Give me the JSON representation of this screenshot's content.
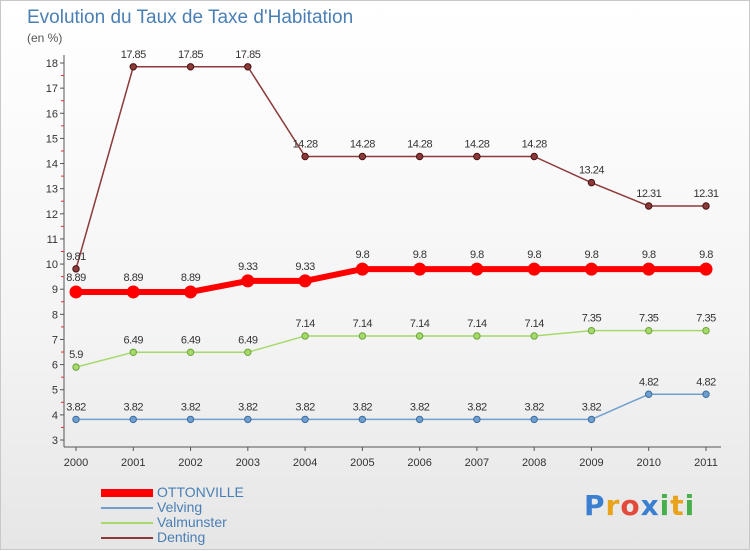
{
  "chart_data": {
    "type": "line",
    "title": "Evolution du Taux de Taxe d'Habitation",
    "ylabel": "(en %)",
    "x": [
      "2000",
      "2001",
      "2002",
      "2003",
      "2004",
      "2005",
      "2006",
      "2007",
      "2008",
      "2009",
      "2010",
      "2011"
    ],
    "ylim": [
      3,
      18
    ],
    "yticks": [
      3,
      4,
      5,
      6,
      7,
      8,
      9,
      10,
      11,
      12,
      13,
      14,
      15,
      16,
      17,
      18
    ],
    "grid": false,
    "series": [
      {
        "name": "OTTONVILLE",
        "color": "#ff0000",
        "width": 6,
        "values": [
          8.89,
          8.89,
          8.89,
          9.33,
          9.33,
          9.8,
          9.8,
          9.8,
          9.8,
          9.8,
          9.8,
          9.8
        ],
        "labels": [
          "8.89",
          "8.89",
          "8.89",
          "9.33",
          "9.33",
          "9.8",
          "9.8",
          "9.8",
          "9.8",
          "9.8",
          "9.8",
          "9.8"
        ]
      },
      {
        "name": "Velving",
        "color": "#6f9fcf",
        "width": 1.5,
        "values": [
          3.82,
          3.82,
          3.82,
          3.82,
          3.82,
          3.82,
          3.82,
          3.82,
          3.82,
          3.82,
          4.82,
          4.82
        ],
        "labels": [
          "3.82",
          "3.82",
          "3.82",
          "3.82",
          "3.82",
          "3.82",
          "3.82",
          "3.82",
          "3.82",
          "3.82",
          "4.82",
          "4.82"
        ]
      },
      {
        "name": "Valmunster",
        "color": "#a6d96a",
        "width": 1.5,
        "values": [
          5.9,
          6.49,
          6.49,
          6.49,
          7.14,
          7.14,
          7.14,
          7.14,
          7.14,
          7.35,
          7.35,
          7.35
        ],
        "labels": [
          "5.9",
          "6.49",
          "6.49",
          "6.49",
          "7.14",
          "7.14",
          "7.14",
          "7.14",
          "7.14",
          "7.35",
          "7.35",
          "7.35"
        ]
      },
      {
        "name": "Denting",
        "color": "#8b3a3a",
        "width": 1.5,
        "values": [
          9.81,
          17.85,
          17.85,
          17.85,
          14.28,
          14.28,
          14.28,
          14.28,
          14.28,
          13.24,
          12.31,
          12.31
        ],
        "labels": [
          "9.81",
          "17.85",
          "17.85",
          "17.85",
          "14.28",
          "14.28",
          "14.28",
          "14.28",
          "14.28",
          "13.24",
          "12.31",
          "12.31"
        ]
      }
    ]
  },
  "logo": {
    "text": "Proxiti",
    "letters": [
      "P",
      "r",
      "o",
      "x",
      "i",
      "t",
      "i"
    ],
    "colors": [
      "#3b7fd1",
      "#e8a21c",
      "#e24a3b",
      "#3b7fd1",
      "#47b04b",
      "#e8a21c",
      "#47b04b"
    ]
  }
}
